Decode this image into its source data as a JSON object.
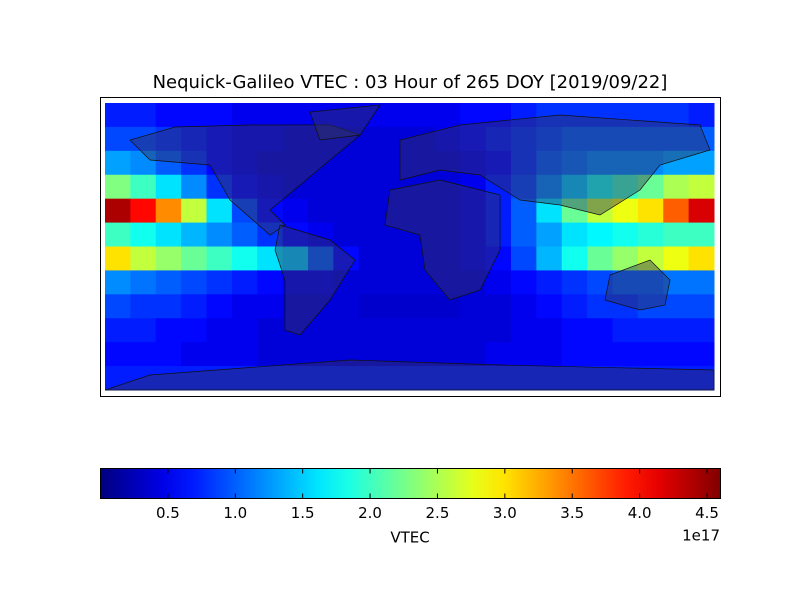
{
  "chart_data": {
    "type": "heatmap",
    "title": "Nequick-Galileo VTEC : 03 Hour of 265 DOY [2019/09/22]",
    "colormap": "jet",
    "z": [
      [
        0.7,
        0.7,
        0.6,
        0.6,
        0.6,
        0.5,
        0.5,
        0.5,
        0.5,
        0.5,
        0.5,
        0.5,
        0.5,
        0.5,
        0.6,
        0.6,
        0.7,
        0.8,
        0.8,
        0.8,
        0.8,
        0.8,
        0.8,
        0.7
      ],
      [
        0.9,
        0.9,
        0.8,
        0.7,
        0.6,
        0.5,
        0.5,
        0.4,
        0.4,
        0.4,
        0.4,
        0.4,
        0.4,
        0.5,
        0.6,
        0.7,
        0.8,
        0.9,
        1.0,
        1.0,
        1.0,
        1.0,
        1.0,
        1.0
      ],
      [
        1.3,
        1.2,
        1.0,
        0.8,
        0.6,
        0.5,
        0.4,
        0.4,
        0.4,
        0.4,
        0.4,
        0.4,
        0.4,
        0.4,
        0.5,
        0.6,
        0.8,
        1.0,
        1.1,
        1.2,
        1.2,
        1.2,
        1.3,
        1.3
      ],
      [
        2.3,
        2.0,
        1.6,
        1.2,
        0.8,
        0.6,
        0.5,
        0.4,
        0.4,
        0.4,
        0.4,
        0.4,
        0.4,
        0.4,
        0.5,
        0.7,
        0.9,
        1.2,
        1.5,
        1.8,
        2.0,
        2.2,
        2.5,
        2.6
      ],
      [
        4.4,
        4.0,
        3.4,
        2.6,
        1.6,
        0.9,
        0.6,
        0.5,
        0.4,
        0.4,
        0.4,
        0.4,
        0.4,
        0.4,
        0.5,
        0.7,
        1.0,
        1.6,
        2.2,
        2.6,
        2.8,
        3.0,
        3.6,
        4.2
      ],
      [
        2.0,
        1.8,
        1.6,
        1.4,
        1.2,
        1.0,
        0.8,
        0.6,
        0.5,
        0.4,
        0.4,
        0.4,
        0.4,
        0.4,
        0.5,
        0.7,
        1.0,
        1.3,
        1.6,
        1.7,
        1.8,
        1.9,
        2.0,
        2.0
      ],
      [
        3.0,
        2.6,
        2.4,
        2.2,
        2.0,
        1.8,
        1.6,
        1.5,
        1.0,
        0.6,
        0.4,
        0.4,
        0.4,
        0.4,
        0.5,
        0.6,
        0.9,
        1.4,
        1.8,
        2.2,
        2.4,
        2.6,
        2.8,
        3.0
      ],
      [
        1.2,
        1.1,
        1.0,
        0.9,
        0.8,
        0.7,
        0.6,
        0.5,
        0.5,
        0.4,
        0.4,
        0.4,
        0.4,
        0.4,
        0.4,
        0.5,
        0.6,
        0.7,
        0.8,
        0.9,
        1.0,
        1.0,
        1.1,
        1.1
      ],
      [
        0.9,
        0.8,
        0.8,
        0.7,
        0.6,
        0.5,
        0.5,
        0.4,
        0.4,
        0.4,
        0.35,
        0.35,
        0.35,
        0.35,
        0.4,
        0.4,
        0.5,
        0.6,
        0.7,
        0.8,
        0.8,
        0.9,
        0.9,
        0.9
      ],
      [
        0.7,
        0.7,
        0.6,
        0.6,
        0.5,
        0.5,
        0.4,
        0.4,
        0.4,
        0.4,
        0.4,
        0.4,
        0.4,
        0.4,
        0.4,
        0.4,
        0.5,
        0.5,
        0.6,
        0.6,
        0.7,
        0.7,
        0.7,
        0.7
      ],
      [
        0.6,
        0.6,
        0.6,
        0.5,
        0.5,
        0.5,
        0.4,
        0.4,
        0.4,
        0.4,
        0.4,
        0.4,
        0.4,
        0.4,
        0.4,
        0.5,
        0.5,
        0.5,
        0.6,
        0.6,
        0.6,
        0.6,
        0.6,
        0.6
      ],
      [
        0.7,
        0.7,
        0.7,
        0.7,
        0.7,
        0.7,
        0.7,
        0.7,
        0.7,
        0.7,
        0.7,
        0.7,
        0.7,
        0.7,
        0.7,
        0.7,
        0.7,
        0.7,
        0.7,
        0.7,
        0.7,
        0.7,
        0.7,
        0.7
      ]
    ],
    "clim": [
      0,
      4.6
    ],
    "cticks": [
      0.5,
      {
        "value": 1,
        "label": "1.0"
      },
      1.5,
      {
        "value": 2,
        "label": "2.0"
      },
      2.5,
      {
        "value": 3,
        "label": "3.0"
      },
      3.5,
      {
        "value": 4,
        "label": "4.0"
      },
      4.5
    ],
    "colorbar_label": "VTEC",
    "colorbar_offset": "1e17"
  }
}
